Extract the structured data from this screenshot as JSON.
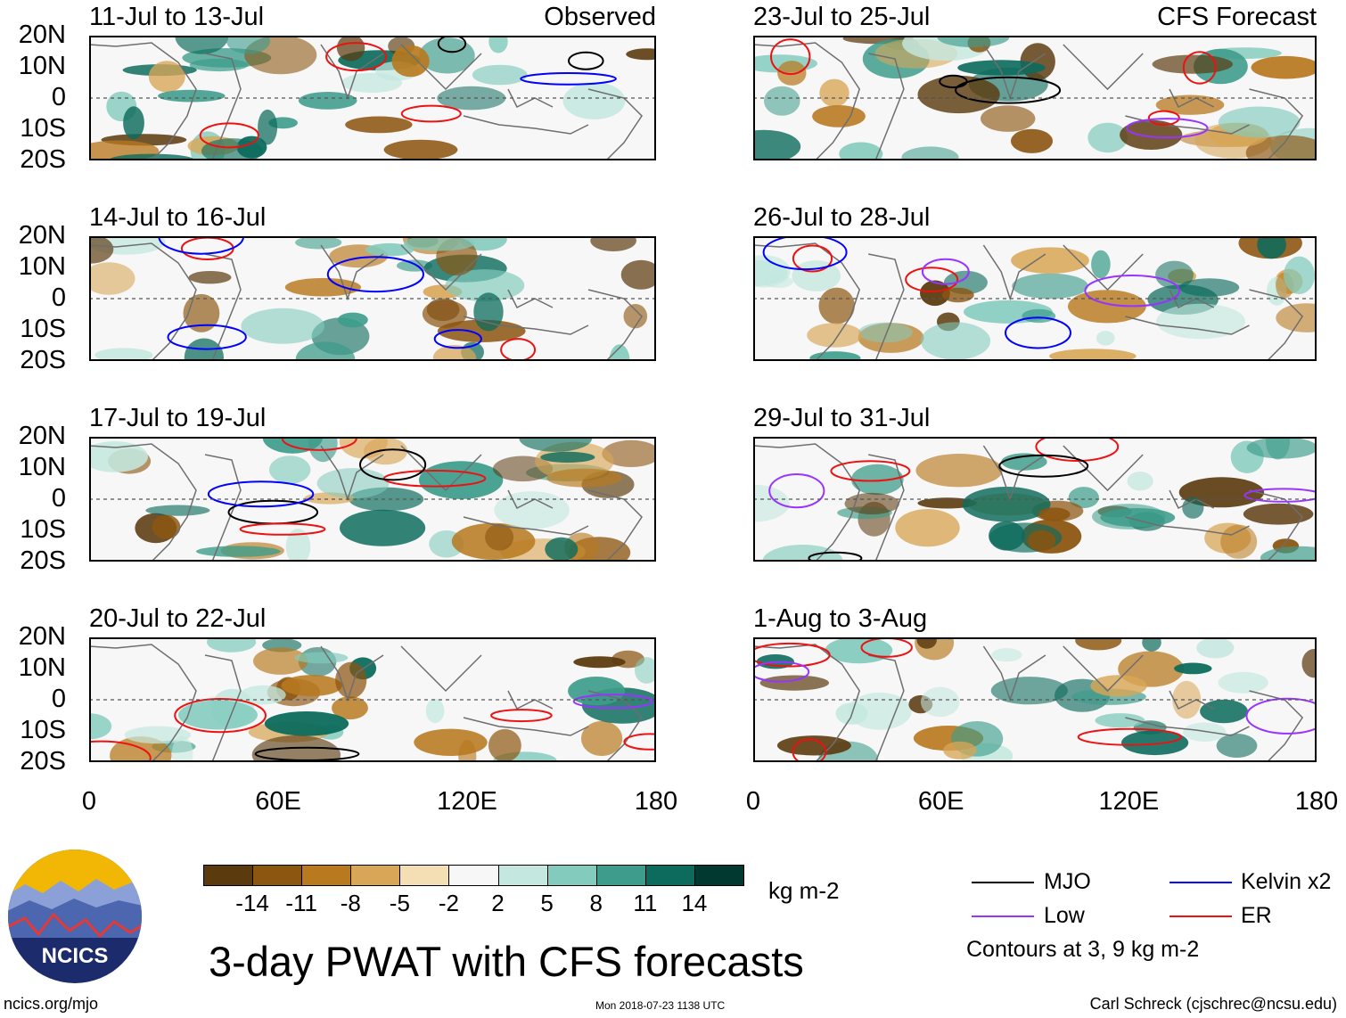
{
  "panels_left": [
    {
      "title": "11-Jul to 13-Jul",
      "tag": "Observed"
    },
    {
      "title": "14-Jul to 16-Jul",
      "tag": ""
    },
    {
      "title": "17-Jul to 19-Jul",
      "tag": ""
    },
    {
      "title": "20-Jul to 22-Jul",
      "tag": ""
    }
  ],
  "panels_right": [
    {
      "title": "23-Jul to 25-Jul",
      "tag": "CFS Forecast"
    },
    {
      "title": "26-Jul to 28-Jul",
      "tag": ""
    },
    {
      "title": "29-Jul to 31-Jul",
      "tag": ""
    },
    {
      "title": "1-Aug to 3-Aug",
      "tag": ""
    }
  ],
  "lat_labels": [
    "20N",
    "10N",
    "0",
    "10S",
    "20S"
  ],
  "lon_labels": [
    "0",
    "60E",
    "120E",
    "180"
  ],
  "colorbar": {
    "labels": [
      "-14",
      "-11",
      "-8",
      "-5",
      "-2",
      "2",
      "5",
      "8",
      "11",
      "14"
    ],
    "colors": [
      "#5b3a0e",
      "#8c5510",
      "#b8791f",
      "#d8a656",
      "#f3dfb3",
      "#f7f7f7",
      "#c4e8df",
      "#82cbbd",
      "#3d9c8b",
      "#0c6b5c",
      "#01382f"
    ],
    "units": "kg m-2"
  },
  "legend": {
    "mjo": "MJO",
    "kelvin": "Kelvin x2",
    "low": "Low",
    "er": "ER",
    "contours": "Contours at 3, 9 kg m-2",
    "colors": {
      "mjo": "#000000",
      "kelvin": "#0000ff",
      "low": "#9933ff",
      "er": "#ee1111"
    }
  },
  "logo_text": "NCICS",
  "chart_title": "3-day PWAT with CFS forecasts",
  "footer": {
    "left": "ncics.org/mjo",
    "center": "Mon 2018-07-23 1138 UTC",
    "right": "Carl Schreck (cjschrec@ncsu.edu)"
  }
}
